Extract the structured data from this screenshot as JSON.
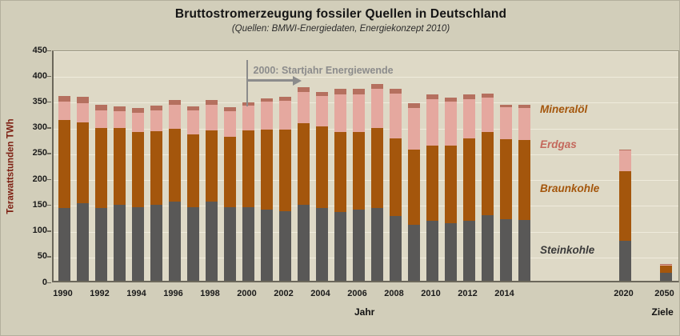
{
  "theme": {
    "background": "#d2ceba",
    "plot_background": "#ded9c6",
    "grid_color": "#efebdc",
    "ylabel_color": "#7d1f12",
    "annotation_color": "#8c8c8c"
  },
  "chart_data": {
    "type": "bar",
    "stacked": true,
    "title": "Bruttostromerzeugung fossiler Quellen in Deutschland",
    "subtitle": "(Quellen: BMWI-Energiedaten, Energiekonzept 2010)",
    "ylabel": "Terawattstunden TWh",
    "xlabel": "Jahr",
    "goal_label": "Ziele",
    "ylim": [
      0,
      450
    ],
    "ytick_step": 50,
    "grid": true,
    "legend_position": "right-inline",
    "annotation": {
      "text": "2000: Startjahr Energiewende",
      "year": 2000,
      "color": "#8c8c8c"
    },
    "years": [
      1990,
      1991,
      1992,
      1993,
      1994,
      1995,
      1996,
      1997,
      1998,
      1999,
      2000,
      2001,
      2002,
      2003,
      2004,
      2005,
      2006,
      2007,
      2008,
      2009,
      2010,
      2011,
      2012,
      2013,
      2014,
      2015,
      2020,
      2050
    ],
    "xtick_years": [
      1990,
      1992,
      1994,
      1996,
      1998,
      2000,
      2002,
      2004,
      2006,
      2008,
      2010,
      2012,
      2014,
      2020,
      2050
    ],
    "series": [
      {
        "name": "Steinkohle",
        "color": "#595857",
        "label_color": "#3a3a3a",
        "label_y_twh": 61,
        "values": [
          141,
          150,
          142,
          148,
          143,
          147,
          153,
          143,
          153,
          143,
          143,
          138,
          135,
          147,
          141,
          134,
          138,
          142,
          125,
          108,
          117,
          112,
          116,
          127,
          119,
          118,
          78,
          15
        ]
      },
      {
        "name": "Braunkohle",
        "color": "#a4560c",
        "label_color": "#a4560c",
        "label_y_twh": 180,
        "values": [
          171,
          158,
          155,
          148,
          146,
          143,
          142,
          141,
          139,
          136,
          148,
          155,
          158,
          158,
          158,
          154,
          151,
          155,
          151,
          146,
          146,
          150,
          161,
          161,
          156,
          155,
          135,
          14
        ]
      },
      {
        "name": "Erdgas",
        "color": "#e5a89f",
        "label_color": "#c4685c",
        "label_y_twh": 266,
        "values": [
          36,
          37,
          34,
          33,
          37,
          41,
          46,
          47,
          49,
          50,
          49,
          55,
          56,
          61,
          59,
          73,
          73,
          76,
          87,
          81,
          89,
          86,
          76,
          68,
          61,
          62,
          40,
          3
        ]
      },
      {
        "name": "Mineralöl",
        "color": "#b5705f",
        "label_color": "#a4560c",
        "label_y_twh": 333,
        "values": [
          11,
          12,
          11,
          9,
          9,
          9,
          9,
          8,
          9,
          8,
          6,
          6,
          8,
          10,
          8,
          12,
          11,
          9,
          9,
          10,
          9,
          7,
          8,
          7,
          6,
          6,
          1,
          1
        ]
      }
    ]
  }
}
